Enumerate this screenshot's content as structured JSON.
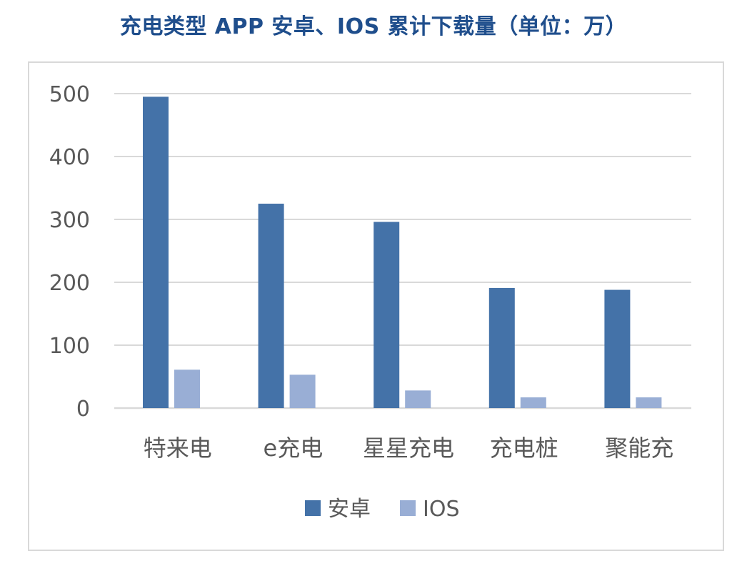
{
  "title": "充电类型 APP 安卓、IOS 累计下载量（单位：万）",
  "chart_data": {
    "type": "bar",
    "categories": [
      "特来电",
      "e充电",
      "星星充电",
      "充电桩",
      "聚能充"
    ],
    "series": [
      {
        "name": "安卓",
        "values": [
          495,
          325,
          296,
          191,
          188
        ],
        "color": "#4472a8"
      },
      {
        "name": "IOS",
        "values": [
          61,
          53,
          28,
          17,
          17
        ],
        "color": "#99aed5"
      }
    ],
    "yticks": [
      0,
      100,
      200,
      300,
      400,
      500
    ],
    "ylim": [
      0,
      500
    ],
    "grid": true,
    "legend_position": "bottom"
  }
}
